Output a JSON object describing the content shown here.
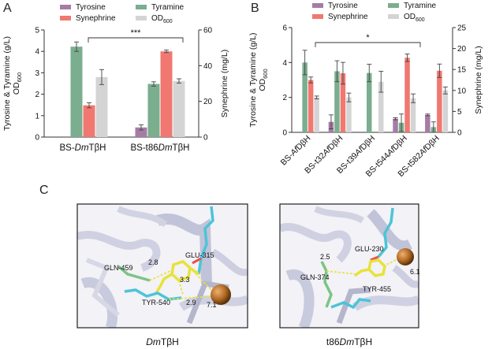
{
  "panel_labels": {
    "a": "A",
    "b": "B",
    "c": "C"
  },
  "colors": {
    "tyrosine": "#a67ca6",
    "tyramine": "#7aae8e",
    "synephrine": "#f07870",
    "od600": "#d4d4d4",
    "ribbon": "#bcbed4",
    "stick_cyan": "#4cc4d8",
    "stick_yellow": "#e8e238",
    "stick_green": "#7cc484",
    "metal": "#b06a24"
  },
  "chart_data": [
    {
      "type": "bar",
      "categories": [
        "BS-DmTβH",
        "BS-t86DmTβH"
      ],
      "category_italic": [
        "Dm",
        "Dm"
      ],
      "legend": {
        "placement": "top",
        "entries": [
          {
            "key": "tyrosine",
            "text": "Tyrosine"
          },
          {
            "key": "tyramine",
            "text": "Tyramine"
          },
          {
            "key": "synephrine",
            "text": "Synephrine"
          },
          {
            "key": "od600",
            "text": "OD",
            "sub": "600"
          }
        ]
      },
      "ylabel": "Tyrosine & Tyramine (g/L)",
      "ylabel2": "OD",
      "ylabel2_sub": "600",
      "y2label": "Synephrine (mg/L)",
      "ylim": [
        0,
        5
      ],
      "y_ticks": [
        "0",
        "1",
        "2",
        "3",
        "4",
        "5"
      ],
      "y2lim": [
        0,
        60
      ],
      "y2_ticks": [
        "0",
        "20",
        "40",
        "60"
      ],
      "series": [
        {
          "key": "tyrosine",
          "name": "Tyrosine",
          "axis": "left",
          "values": [
            0,
            0.45
          ],
          "errors": [
            0,
            0.12
          ]
        },
        {
          "key": "tyramine",
          "name": "Tyramine",
          "axis": "left",
          "values": [
            4.22,
            2.48
          ],
          "errors": [
            0.22,
            0.1
          ]
        },
        {
          "key": "synephrine",
          "name": "Synephrine",
          "axis": "right",
          "values": [
            17.8,
            48
          ],
          "errors": [
            1.4,
            0.7
          ]
        },
        {
          "key": "od600",
          "name": "OD600",
          "axis": "left",
          "values": [
            2.8,
            2.62
          ],
          "errors": [
            0.35,
            0.1
          ]
        }
      ],
      "significance": "***"
    },
    {
      "type": "bar",
      "categories": [
        "BS-AfDβH",
        "BS-t32AfDβH",
        "BS-t39AfDβH",
        "BS-t544AfDβH",
        "BS-t582AfDβH"
      ],
      "category_italic": [
        "Af",
        "Af",
        "Af",
        "Af",
        "Af"
      ],
      "legend": {
        "placement": "top",
        "entries": [
          {
            "key": "tyrosine",
            "text": "Tyrosine"
          },
          {
            "key": "tyramine",
            "text": "Tyramine"
          },
          {
            "key": "synephrine",
            "text": "Synephrine"
          },
          {
            "key": "od600",
            "text": "OD",
            "sub": "600"
          }
        ]
      },
      "ylabel": "Tyrosine & Tyramine (g/L)",
      "ylabel2": "OD",
      "ylabel2_sub": "600",
      "y2label": "Synephrine (mg/L)",
      "ylim": [
        0,
        6
      ],
      "y_ticks": [
        "0",
        "2",
        "4",
        "6"
      ],
      "y2lim": [
        0,
        25
      ],
      "y2_ticks": [
        "0",
        "5",
        "10",
        "15",
        "20",
        "25"
      ],
      "series": [
        {
          "key": "tyrosine",
          "name": "Tyrosine",
          "axis": "left",
          "values": [
            0,
            0.6,
            0,
            0.78,
            1.0
          ],
          "errors": [
            0,
            0.4,
            0,
            0.06,
            0.05
          ]
        },
        {
          "key": "tyramine",
          "name": "Tyramine",
          "axis": "left",
          "values": [
            4.0,
            3.5,
            3.4,
            0.55,
            0.3
          ],
          "errors": [
            0.7,
            0.6,
            0.5,
            0.5,
            0.3
          ]
        },
        {
          "key": "synephrine",
          "name": "Synephrine",
          "axis": "right",
          "values": [
            12.5,
            14.1,
            0,
            17.8,
            14.7
          ],
          "errors": [
            0.7,
            2.6,
            0,
            0.9,
            1.6
          ]
        },
        {
          "key": "od600",
          "name": "OD600",
          "axis": "left",
          "values": [
            2.0,
            2.0,
            2.9,
            1.95,
            2.4
          ],
          "errors": [
            0.08,
            0.25,
            0.6,
            0.25,
            0.2
          ]
        }
      ],
      "significance": "*"
    }
  ],
  "structures": [
    {
      "caption_italic": "Dm",
      "caption_rest": "TβH",
      "residues": [
        "GLU-315",
        "GLN-459",
        "TYR-540"
      ],
      "distances": [
        "2.8",
        "3.3",
        "2.9",
        "7.1"
      ]
    },
    {
      "caption_prefix": "t86",
      "caption_italic": "Dm",
      "caption_rest": "TβH",
      "residues": [
        "GLU-230",
        "GLN-374",
        "TYR-455"
      ],
      "distances": [
        "2.5",
        "6.1"
      ]
    }
  ]
}
